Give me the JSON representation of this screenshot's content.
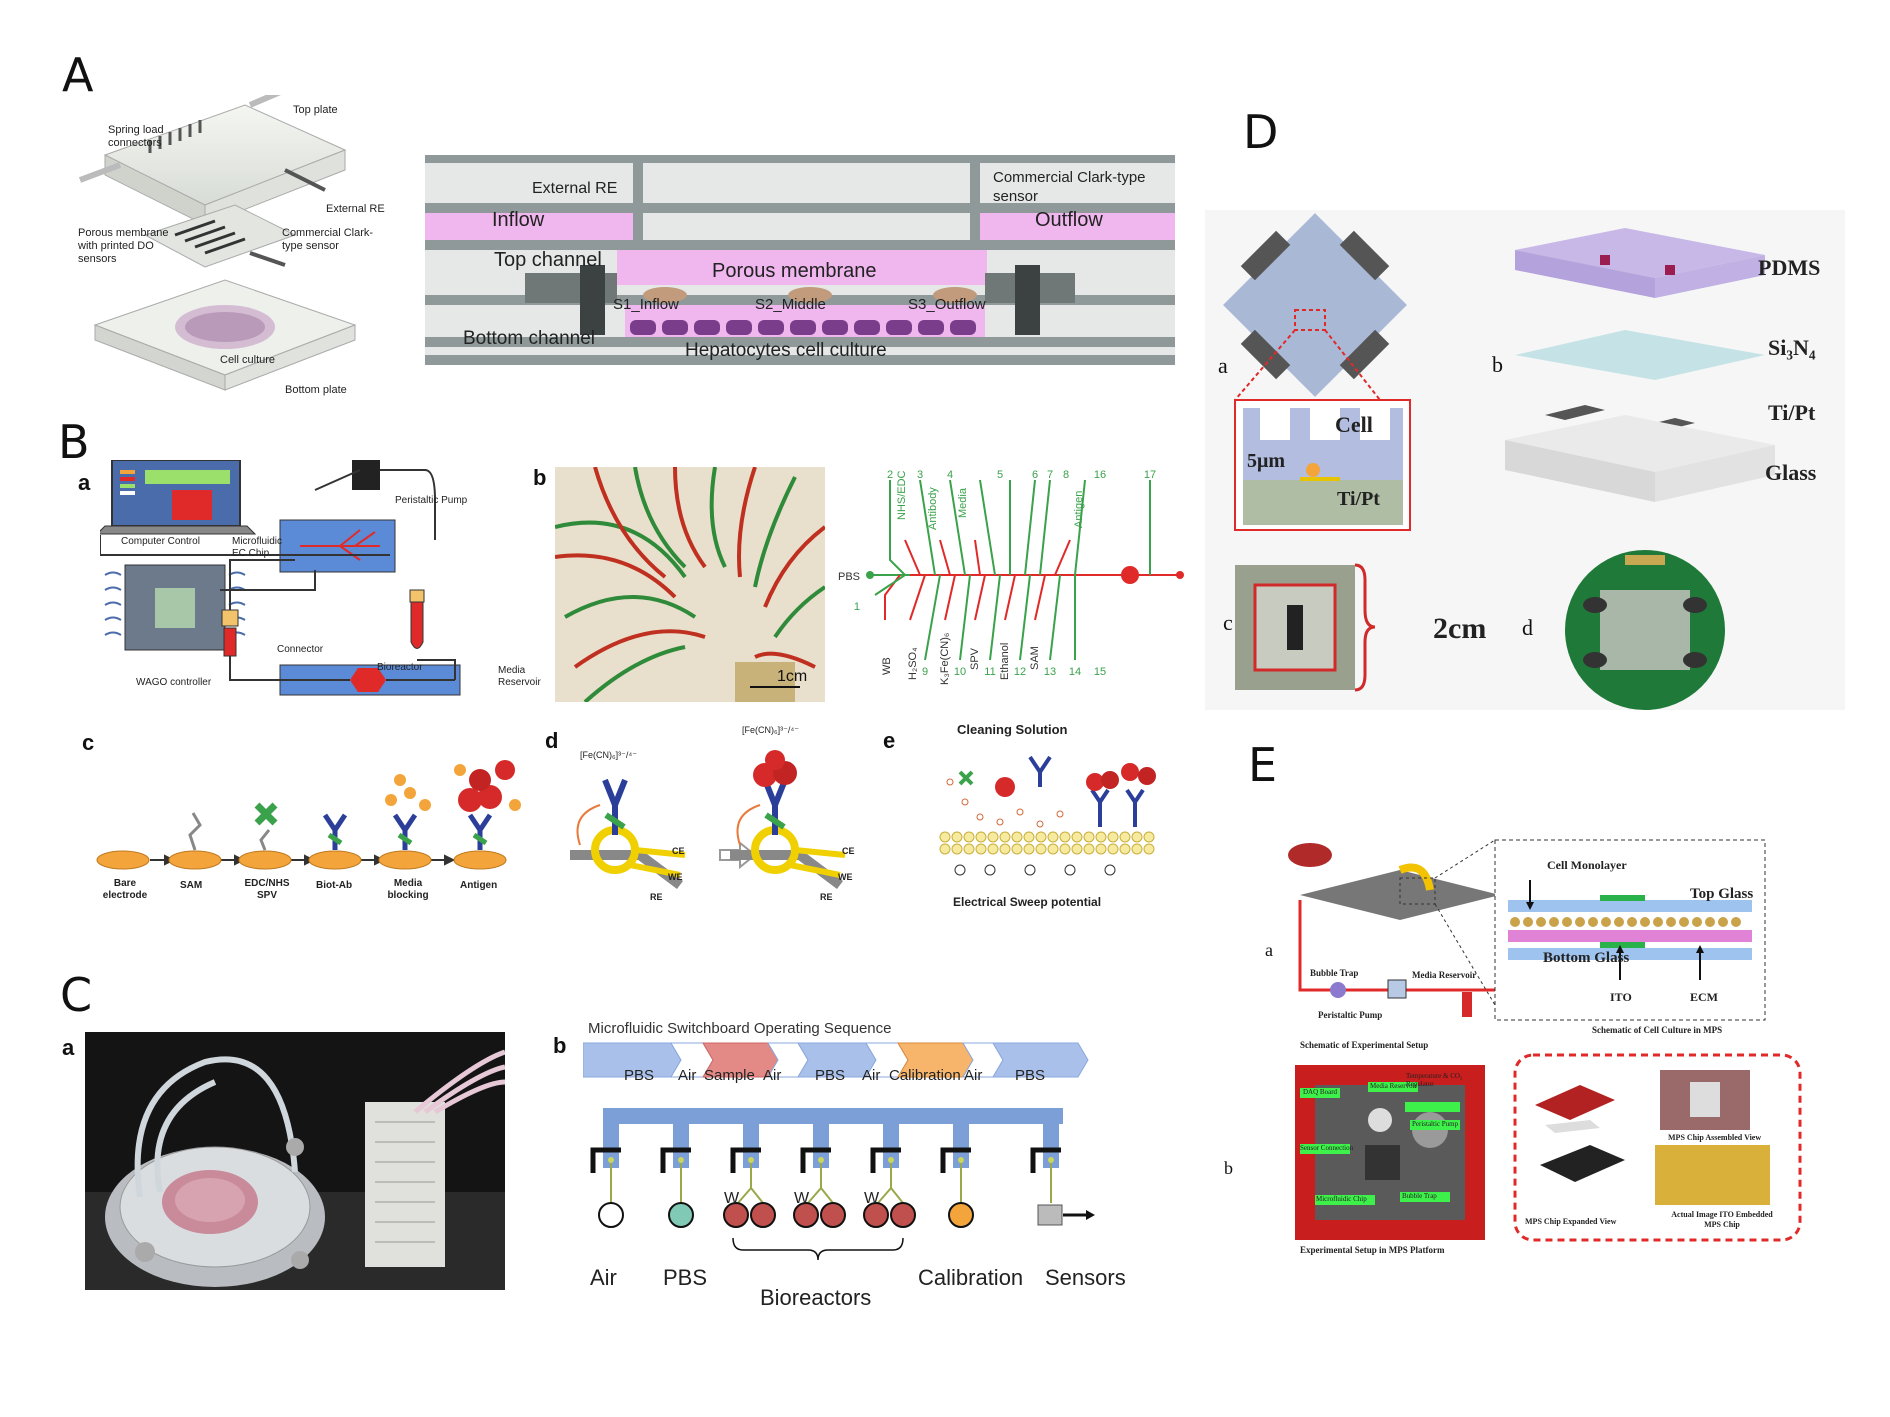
{
  "panels": {
    "A": {
      "letter": "A",
      "exploded": {
        "top_plate": "Top plate",
        "spring_load": "Spring load connectors",
        "external_re": "External RE",
        "porous": "Porous membrane with printed DO sensors",
        "clark": "Commercial Clark-type sensor",
        "cell_culture": "Cell culture",
        "bottom_plate": "Bottom plate"
      },
      "section": {
        "external_re": "External RE",
        "clark": "Commercial Clark-type sensor",
        "inflow": "Inflow",
        "outflow": "Outflow",
        "top_channel": "Top channel",
        "porous_membrane": "Porous membrane",
        "s1": "S1_Inflow",
        "s2": "S2_Middle",
        "s3": "S3_Outflow",
        "bottom_channel": "Bottom channel",
        "hepatocytes": "Hepatocytes cell culture"
      }
    },
    "B": {
      "letter": "B",
      "a": {
        "label": "a",
        "computer": "Computer Control",
        "chip": "Microfluidic EC Chip",
        "pump": "Peristaltic Pump",
        "connector": "Connector",
        "wago": "WAGO controller",
        "bioreactor": "Bioreactor",
        "media": "Media Reservoir"
      },
      "b": {
        "label": "b",
        "scale": "1cm",
        "top_ports": [
          "2",
          "NHS/EDC",
          "3",
          "Antibody",
          "4",
          "Media",
          "5",
          "6",
          "7",
          "8",
          "Antigen",
          "16",
          "17"
        ],
        "pbs": "PBS",
        "port1": "1",
        "bottom_ports": [
          "WB",
          "H₂SO₄",
          "K₃Fe(CN)₆",
          "SPV",
          "Ethanol",
          "SAM",
          "9",
          "10",
          "11",
          "12",
          "13",
          "14",
          "15"
        ]
      },
      "c": {
        "label": "c",
        "steps": [
          "Bare electrode",
          "SAM",
          "EDC/NHS SPV",
          "Biot-Ab",
          "Media blocking",
          "Antigen"
        ]
      },
      "d": {
        "label": "d",
        "redox": "[Fe(CN)₆]³⁻/⁴⁻",
        "ce": "CE",
        "we": "WE",
        "re": "RE"
      },
      "e": {
        "label": "e",
        "title": "Cleaning Solution",
        "caption": "Electrical Sweep potential"
      }
    },
    "C": {
      "letter": "C",
      "a_label": "a",
      "b_label": "b",
      "sequence_title": "Microfluidic Switchboard Operating Sequence",
      "sequence": [
        "PBS",
        "Air",
        "Sample",
        "Air",
        "PBS",
        "Air",
        "Calibration",
        "Air",
        "PBS"
      ],
      "w_label": "W",
      "bottom": [
        "Air",
        "PBS",
        "Bioreactors",
        "Calibration",
        "Sensors"
      ]
    },
    "D": {
      "letter": "D",
      "a_label": "a",
      "b_label": "b",
      "c_label": "c",
      "d_label": "d",
      "cell": "Cell",
      "gap": "5μm",
      "tipt_small": "Ti/Pt",
      "layers": [
        "PDMS",
        "Si₃N₄",
        "Ti/Pt",
        "Glass"
      ],
      "size": "2cm"
    },
    "E": {
      "letter": "E",
      "a_label": "a",
      "b_label": "b",
      "bubble": "Bubble Trap",
      "pump": "Peristaltic Pump",
      "media": "Media Reservoir",
      "schem1": "Schematic of Experimental Setup",
      "monolayer": "Cell Monolayer",
      "top_glass": "Top Glass",
      "bottom_glass": "Bottom Glass",
      "ito": "ITO",
      "ecm": "ECM",
      "schem2": "Schematic of Cell Culture in MPS",
      "photo_tags": [
        "DAQ Board",
        "Media Reservoir",
        "Temperature & CO₂ Regulator",
        "Peristaltic Pump",
        "Sensor Connection",
        "Microfluidic Chip",
        "Bubble Trap"
      ],
      "photo_caption": "Experimental Setup in MPS Platform",
      "chip_assembled": "MPS Chip Assembled View",
      "chip_expanded": "MPS Chip Expanded View",
      "chip_actual": "Actual Image ITO Embedded MPS Chip"
    }
  },
  "colors": {
    "pink": "#f0b6ee",
    "red_line": "#e02a2a",
    "green_line": "#3aa24a",
    "blue_bar": "#8aa8dc",
    "orange": "#f3a53b",
    "pcb_green": "#1f7a3a"
  }
}
